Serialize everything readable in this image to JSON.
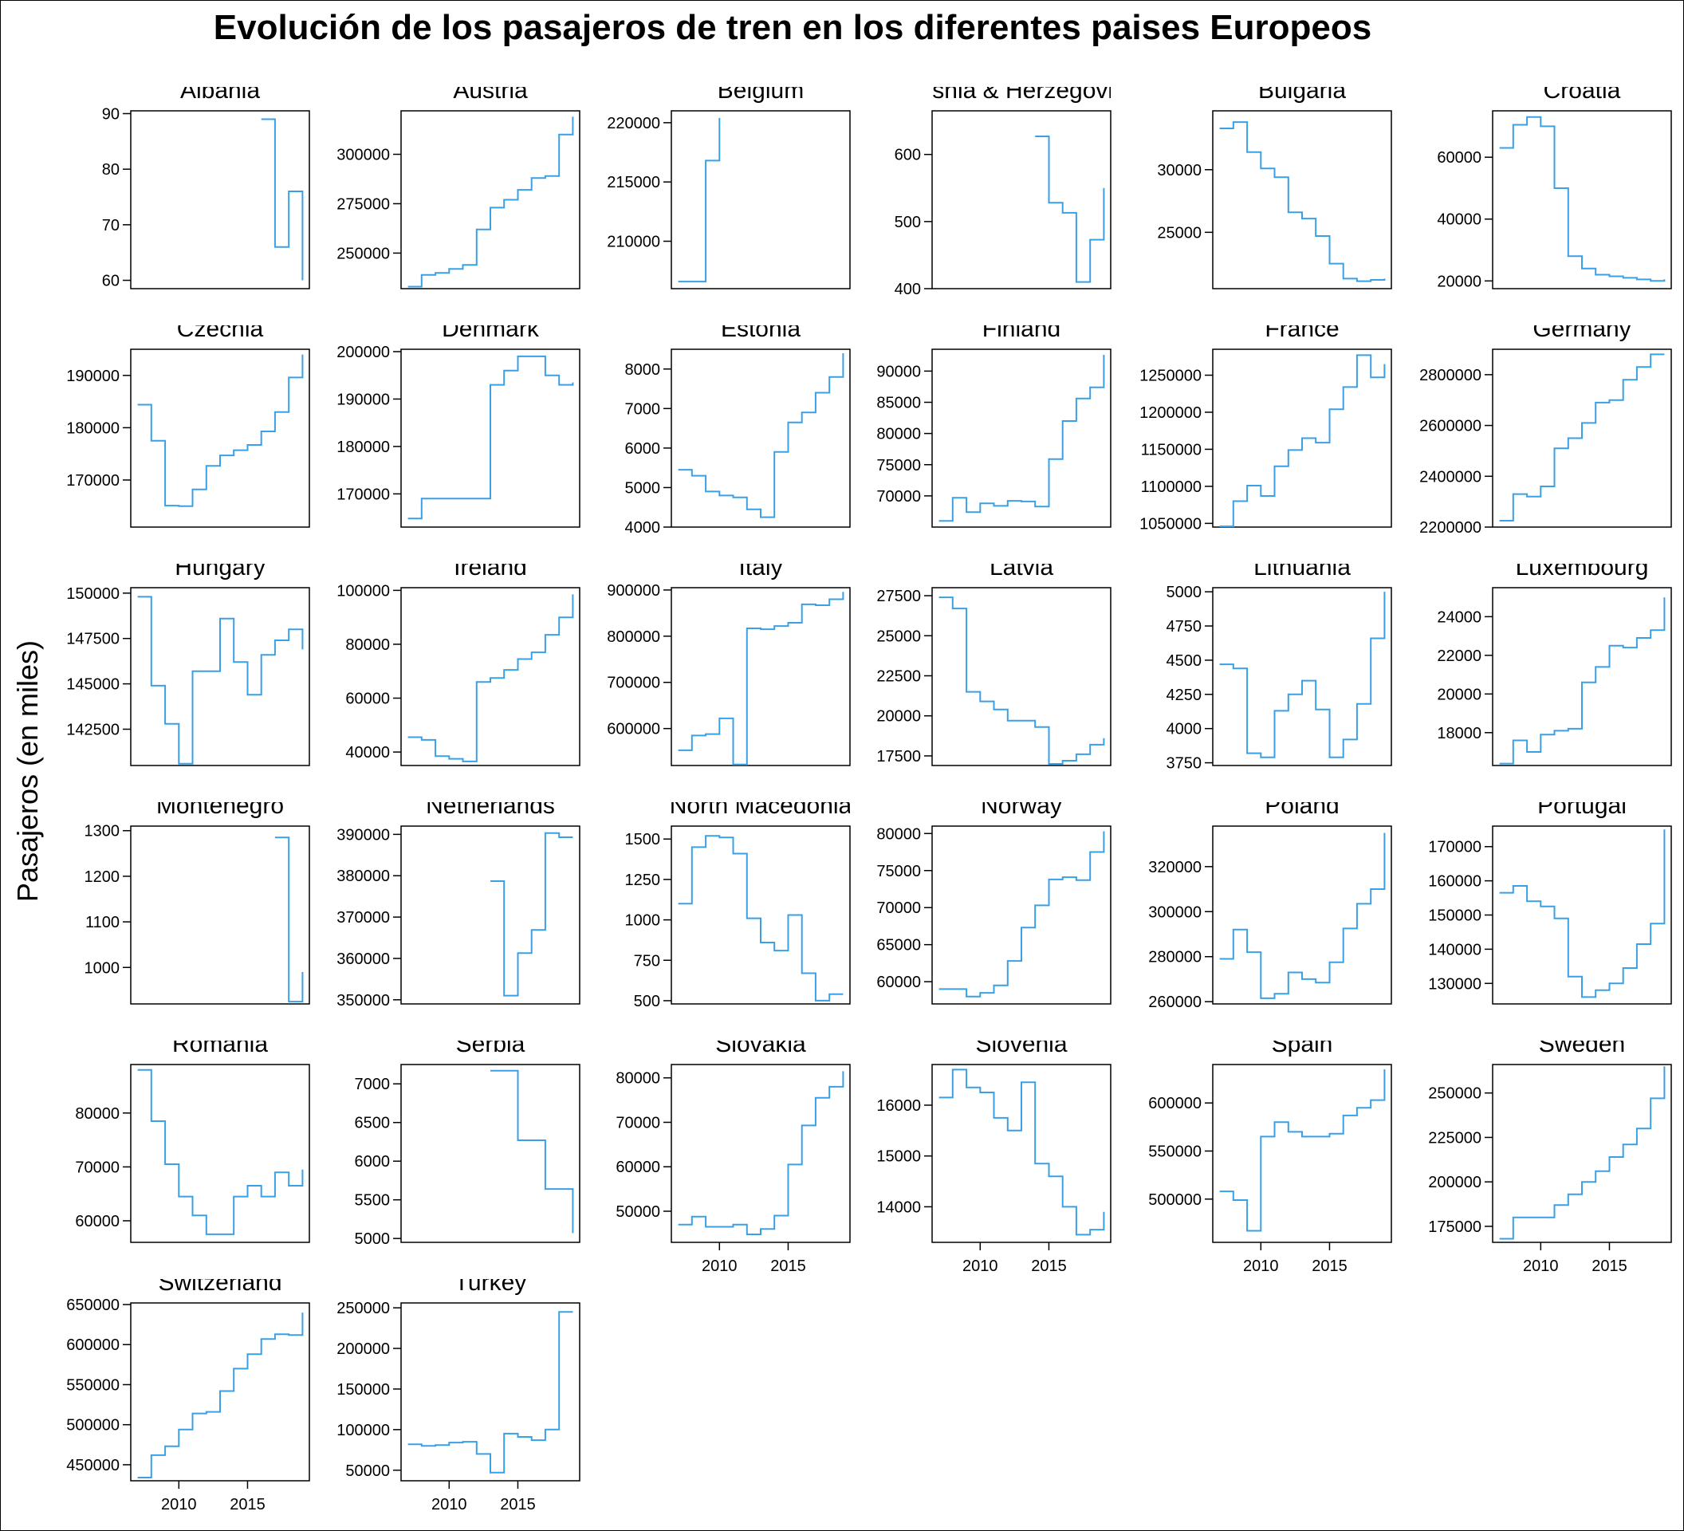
{
  "title": "Evolución de los pasajeros de tren en los diferentes paises Europeos",
  "ylabel": "Pasajeros (en miles)",
  "xlabel": "",
  "chart_data": {
    "type": "line",
    "step": true,
    "line_color": "#3aa0e6",
    "years": [
      2007,
      2008,
      2009,
      2010,
      2011,
      2012,
      2013,
      2014,
      2015,
      2016,
      2017,
      2018,
      2019
    ],
    "x_ticks": [
      2010,
      2015
    ],
    "x_range": [
      2006.5,
      2019.5
    ],
    "panels": [
      {
        "name": "Albania",
        "ylim": [
          58.5,
          90.5
        ],
        "yticks": [
          60,
          70,
          80,
          90
        ],
        "tick_labels": [
          "60",
          "70",
          "80",
          "90"
        ],
        "values": [
          null,
          null,
          null,
          null,
          null,
          null,
          null,
          null,
          null,
          89,
          66,
          76,
          60
        ]
      },
      {
        "name": "Austria",
        "ylim": [
          232000,
          322000
        ],
        "yticks": [
          250000,
          275000,
          300000
        ],
        "tick_labels": [
          "250000",
          "275000",
          "300000"
        ],
        "values": [
          233000,
          239000,
          240000,
          242000,
          244000,
          262000,
          273000,
          277000,
          282000,
          288000,
          289000,
          310000,
          319000
        ]
      },
      {
        "name": "Belgium",
        "ylim": [
          206000,
          221000
        ],
        "yticks": [
          210000,
          215000,
          220000
        ],
        "tick_labels": [
          "210000",
          "215000",
          "220000"
        ],
        "values": [
          206600,
          206600,
          216800,
          220400,
          null,
          null,
          null,
          null,
          null,
          null,
          null,
          null,
          null
        ]
      },
      {
        "name": "Bosnia & Herzegovina",
        "ylim": [
          400,
          665
        ],
        "yticks": [
          400,
          500,
          600
        ],
        "tick_labels": [
          "400",
          "500",
          "600"
        ],
        "values": [
          null,
          null,
          null,
          null,
          null,
          null,
          null,
          627,
          528,
          513,
          410,
          473,
          550
        ]
      },
      {
        "name": "Bulgaria",
        "ylim": [
          20500,
          34700
        ],
        "yticks": [
          25000,
          30000
        ],
        "tick_labels": [
          "25000",
          "30000"
        ],
        "values": [
          33300,
          33800,
          31400,
          30100,
          29400,
          26600,
          26100,
          24700,
          22500,
          21300,
          21100,
          21200,
          21300
        ]
      },
      {
        "name": "Croatia",
        "ylim": [
          17500,
          75000
        ],
        "yticks": [
          20000,
          40000,
          60000
        ],
        "tick_labels": [
          "20000",
          "40000",
          "60000"
        ],
        "values": [
          63000,
          70500,
          73000,
          70000,
          50000,
          28000,
          24000,
          22000,
          21500,
          21000,
          20500,
          20000,
          20500
        ]
      },
      {
        "name": "Czechia",
        "ylim": [
          161000,
          195000
        ],
        "yticks": [
          170000,
          180000,
          190000
        ],
        "tick_labels": [
          "170000",
          "180000",
          "190000"
        ],
        "values": [
          184400,
          177500,
          165100,
          165000,
          168200,
          172700,
          174700,
          175700,
          176700,
          179300,
          183000,
          189600,
          194000
        ]
      },
      {
        "name": "Denmark",
        "ylim": [
          163000,
          200500
        ],
        "yticks": [
          170000,
          180000,
          190000,
          200000
        ],
        "tick_labels": [
          "170000",
          "180000",
          "190000",
          "200000"
        ],
        "values": [
          164800,
          169000,
          169000,
          169000,
          169000,
          169000,
          193000,
          196000,
          199000,
          199000,
          195000,
          193000,
          193500
        ]
      },
      {
        "name": "Estonia",
        "ylim": [
          4000,
          8500
        ],
        "yticks": [
          4000,
          5000,
          6000,
          7000,
          8000
        ],
        "tick_labels": [
          "4000",
          "5000",
          "6000",
          "7000",
          "8000"
        ],
        "values": [
          5450,
          5300,
          4900,
          4800,
          4750,
          4450,
          4250,
          5900,
          6650,
          6900,
          7400,
          7800,
          8400
        ]
      },
      {
        "name": "Finland",
        "ylim": [
          65000,
          93500
        ],
        "yticks": [
          70000,
          75000,
          80000,
          85000,
          90000
        ],
        "tick_labels": [
          "70000",
          "75000",
          "80000",
          "85000",
          "90000"
        ],
        "values": [
          66000,
          69700,
          67400,
          68800,
          68400,
          69200,
          69100,
          68300,
          75900,
          82000,
          85600,
          87400,
          92600
        ]
      },
      {
        "name": "France",
        "ylim": [
          1045000,
          1285000
        ],
        "yticks": [
          1050000,
          1100000,
          1150000,
          1200000,
          1250000
        ],
        "tick_labels": [
          "1050000",
          "1100000",
          "1150000",
          "1200000",
          "1250000"
        ],
        "values": [
          1046000,
          1080000,
          1101000,
          1087000,
          1127000,
          1149000,
          1165000,
          1159000,
          1204000,
          1234000,
          1277000,
          1247000,
          1265000
        ]
      },
      {
        "name": "Germany",
        "ylim": [
          2200000,
          2900000
        ],
        "yticks": [
          2200000,
          2400000,
          2600000,
          2800000
        ],
        "tick_labels": [
          "2200000",
          "2400000",
          "2600000",
          "2800000"
        ],
        "values": [
          2225000,
          2330000,
          2320000,
          2360000,
          2510000,
          2550000,
          2610000,
          2690000,
          2700000,
          2780000,
          2830000,
          2880000,
          2880000
        ]
      },
      {
        "name": "Hungary",
        "ylim": [
          140500,
          150300
        ],
        "yticks": [
          142500,
          145000,
          147500,
          150000
        ],
        "tick_labels": [
          "142500",
          "145000",
          "147500",
          "150000"
        ],
        "values": [
          149800,
          144900,
          142800,
          140600,
          145700,
          145700,
          148600,
          146200,
          144400,
          146600,
          147400,
          148000,
          146900
        ]
      },
      {
        "name": "Ireland",
        "ylim": [
          35000,
          101000
        ],
        "yticks": [
          40000,
          60000,
          80000,
          100000
        ],
        "tick_labels": [
          "40000",
          "60000",
          "80000",
          "100000"
        ],
        "values": [
          45500,
          44500,
          38500,
          37500,
          36500,
          66000,
          67500,
          70500,
          74500,
          77000,
          83500,
          90000,
          98500
        ]
      },
      {
        "name": "Italy",
        "ylim": [
          520000,
          905000
        ],
        "yticks": [
          600000,
          700000,
          800000,
          900000
        ],
        "tick_labels": [
          "600000",
          "700000",
          "800000",
          "900000"
        ],
        "values": [
          553000,
          585000,
          588000,
          622000,
          522000,
          817000,
          815000,
          822000,
          829000,
          869000,
          867000,
          880000,
          896000
        ]
      },
      {
        "name": "Latvia",
        "ylim": [
          16900,
          28000
        ],
        "yticks": [
          17500,
          20000,
          22500,
          25000,
          27500
        ],
        "tick_labels": [
          "17500",
          "20000",
          "22500",
          "25000",
          "27500"
        ],
        "values": [
          27400,
          26700,
          21500,
          20900,
          20400,
          19700,
          19700,
          19300,
          17000,
          17200,
          17600,
          18200,
          18600
        ]
      },
      {
        "name": "Lithuania",
        "ylim": [
          3730,
          5030
        ],
        "yticks": [
          3750,
          4000,
          4250,
          4500,
          4750,
          5000
        ],
        "tick_labels": [
          "3750",
          "4000",
          "4250",
          "4500",
          "4750",
          "5000"
        ],
        "values": [
          4470,
          4440,
          3820,
          3790,
          4130,
          4250,
          4350,
          4140,
          3790,
          3920,
          4180,
          4660,
          5000
        ]
      },
      {
        "name": "Luxembourg",
        "ylim": [
          16300,
          25500
        ],
        "yticks": [
          18000,
          20000,
          22000,
          24000
        ],
        "tick_labels": [
          "18000",
          "20000",
          "22000",
          "24000"
        ],
        "values": [
          16400,
          17600,
          17000,
          17900,
          18100,
          18200,
          20600,
          21400,
          22500,
          22400,
          22900,
          23300,
          25000
        ]
      },
      {
        "name": "Montenegro",
        "ylim": [
          920,
          1310
        ],
        "yticks": [
          1000,
          1100,
          1200,
          1300
        ],
        "tick_labels": [
          "1000",
          "1100",
          "1200",
          "1300"
        ],
        "values": [
          null,
          null,
          null,
          null,
          null,
          null,
          null,
          null,
          null,
          null,
          1285,
          925,
          990
        ]
      },
      {
        "name": "Netherlands",
        "ylim": [
          349000,
          392000
        ],
        "yticks": [
          350000,
          360000,
          370000,
          380000,
          390000
        ],
        "tick_labels": [
          "350000",
          "360000",
          "370000",
          "380000",
          "390000"
        ],
        "values": [
          null,
          null,
          null,
          null,
          null,
          null,
          378700,
          351000,
          361300,
          366900,
          390300,
          389300,
          389300
        ]
      },
      {
        "name": "North Macedonia",
        "ylim": [
          480,
          1580
        ],
        "yticks": [
          500,
          750,
          1000,
          1250,
          1500
        ],
        "tick_labels": [
          "500",
          "750",
          "1000",
          "1250",
          "1500"
        ],
        "values": [
          1100,
          1450,
          1520,
          1510,
          1410,
          1010,
          860,
          810,
          1030,
          670,
          500,
          540,
          540
        ]
      },
      {
        "name": "Norway",
        "ylim": [
          57000,
          81000
        ],
        "yticks": [
          60000,
          65000,
          70000,
          75000,
          80000
        ],
        "tick_labels": [
          "60000",
          "65000",
          "70000",
          "75000",
          "80000"
        ],
        "values": [
          59000,
          59000,
          58000,
          58500,
          59500,
          62800,
          67300,
          70300,
          73800,
          74100,
          73700,
          77500,
          80300
        ]
      },
      {
        "name": "Poland",
        "ylim": [
          259000,
          338000
        ],
        "yticks": [
          260000,
          280000,
          300000,
          320000
        ],
        "tick_labels": [
          "260000",
          "280000",
          "300000",
          "320000"
        ],
        "values": [
          279000,
          292000,
          282000,
          261500,
          263500,
          273000,
          270000,
          268500,
          277500,
          292500,
          303500,
          310000,
          335000
        ]
      },
      {
        "name": "Portugal",
        "ylim": [
          124000,
          176000
        ],
        "yticks": [
          130000,
          140000,
          150000,
          160000,
          170000
        ],
        "tick_labels": [
          "130000",
          "140000",
          "150000",
          "160000",
          "170000"
        ],
        "values": [
          156500,
          158500,
          154000,
          152500,
          149000,
          132000,
          126000,
          128000,
          130000,
          134500,
          141500,
          147500,
          175000
        ]
      },
      {
        "name": "Romania",
        "ylim": [
          56000,
          89000
        ],
        "yticks": [
          60000,
          70000,
          80000
        ],
        "tick_labels": [
          "60000",
          "70000",
          "80000"
        ],
        "values": [
          88000,
          78500,
          70500,
          64500,
          61000,
          57500,
          57500,
          64500,
          66500,
          64500,
          69000,
          66500,
          69500
        ]
      },
      {
        "name": "Serbia",
        "ylim": [
          4950,
          7250
        ],
        "yticks": [
          5000,
          5500,
          6000,
          6500,
          7000
        ],
        "tick_labels": [
          "5000",
          "5500",
          "6000",
          "6500",
          "7000"
        ],
        "values": [
          null,
          null,
          null,
          null,
          null,
          null,
          7170,
          7170,
          6270,
          6270,
          5640,
          5640,
          5070
        ]
      },
      {
        "name": "Slovakia",
        "ylim": [
          43000,
          83000
        ],
        "yticks": [
          50000,
          60000,
          70000,
          80000
        ],
        "tick_labels": [
          "50000",
          "60000",
          "70000",
          "80000"
        ],
        "values": [
          47000,
          48800,
          46500,
          46500,
          47000,
          44800,
          46000,
          49000,
          60500,
          69300,
          75500,
          78000,
          81500
        ]
      },
      {
        "name": "Slovenia",
        "ylim": [
          13300,
          16800
        ],
        "yticks": [
          14000,
          15000,
          16000
        ],
        "tick_labels": [
          "14000",
          "15000",
          "16000"
        ],
        "values": [
          16150,
          16700,
          16350,
          16250,
          15750,
          15500,
          16450,
          14850,
          14600,
          14000,
          13450,
          13550,
          13900
        ]
      },
      {
        "name": "Spain",
        "ylim": [
          455000,
          640000
        ],
        "yticks": [
          500000,
          550000,
          600000
        ],
        "tick_labels": [
          "500000",
          "550000",
          "600000"
        ],
        "values": [
          508000,
          499000,
          467000,
          565000,
          580000,
          570000,
          565000,
          565000,
          568000,
          587000,
          595000,
          603000,
          635000
        ]
      },
      {
        "name": "Sweden",
        "ylim": [
          166000,
          266000
        ],
        "yticks": [
          175000,
          200000,
          225000,
          250000
        ],
        "tick_labels": [
          "175000",
          "200000",
          "225000",
          "250000"
        ],
        "values": [
          168000,
          180000,
          180000,
          180000,
          187000,
          193000,
          200000,
          206000,
          214000,
          221000,
          230000,
          247000,
          265000
        ]
      },
      {
        "name": "Switzerland",
        "ylim": [
          430000,
          652000
        ],
        "yticks": [
          450000,
          500000,
          550000,
          600000,
          650000
        ],
        "tick_labels": [
          "450000",
          "500000",
          "550000",
          "600000",
          "650000"
        ],
        "values": [
          434000,
          462000,
          473000,
          494000,
          514000,
          516000,
          542000,
          570000,
          588000,
          607000,
          613000,
          612000,
          640000
        ]
      },
      {
        "name": "Turkey",
        "ylim": [
          37000,
          256000
        ],
        "yticks": [
          50000,
          100000,
          150000,
          200000,
          250000
        ],
        "tick_labels": [
          "50000",
          "100000",
          "150000",
          "200000",
          "250000"
        ],
        "values": [
          82000,
          80000,
          81000,
          84000,
          85000,
          70000,
          47000,
          95000,
          91000,
          87000,
          100000,
          245000,
          245000
        ]
      }
    ]
  }
}
